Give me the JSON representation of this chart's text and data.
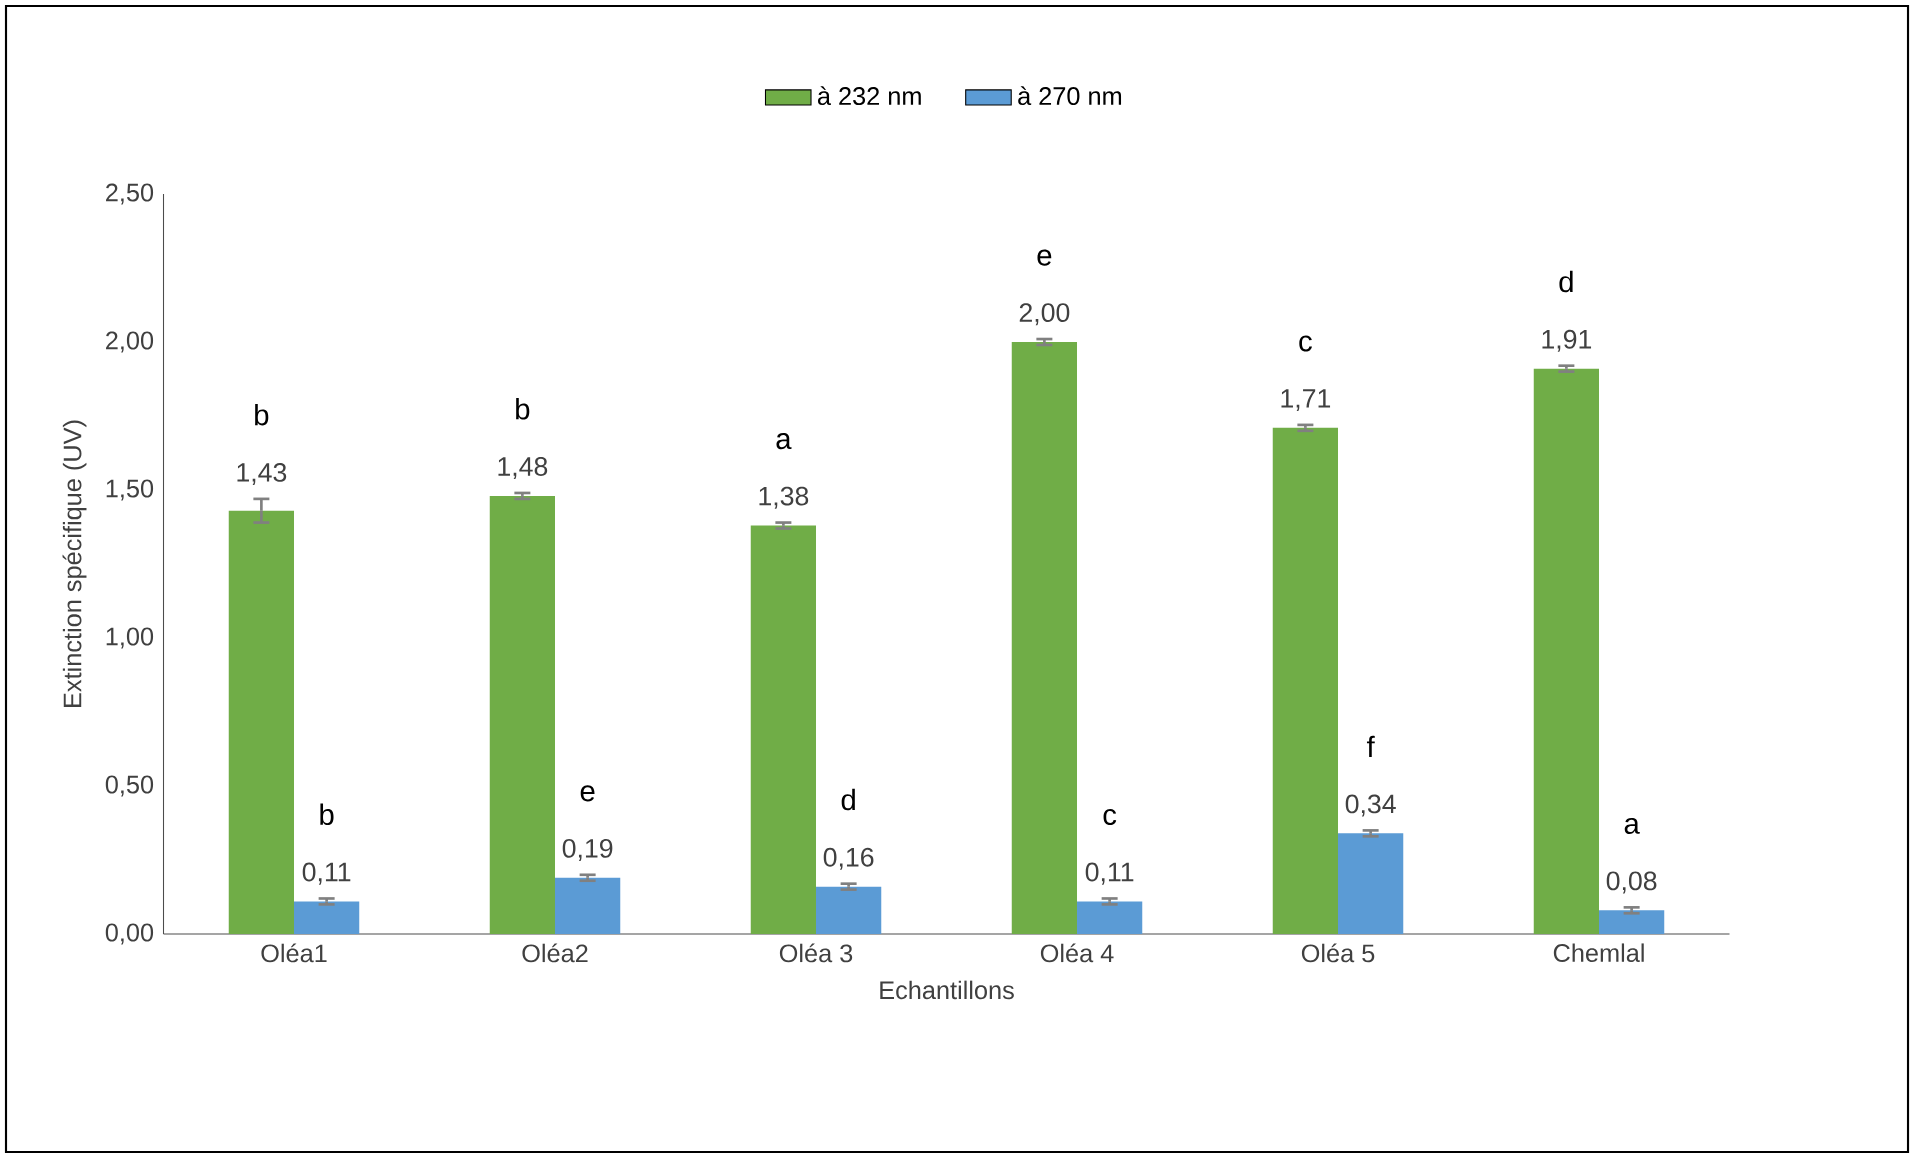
{
  "chart_data": {
    "type": "bar",
    "xlabel": "Echantillons",
    "ylabel": "Extinction spécifique (UV)",
    "categories": [
      "Oléa1",
      "Oléa2",
      "Oléa 3",
      "Oléa 4",
      "Oléa 5",
      "Chemlal"
    ],
    "series": [
      {
        "name": "à 232 nm",
        "color": "#70ad47",
        "values": [
          1.43,
          1.48,
          1.38,
          2.0,
          1.71,
          1.91
        ],
        "errors": [
          0.04,
          0.01,
          0.01,
          0.01,
          0.01,
          0.01
        ],
        "value_labels": [
          "1,43",
          "1,48",
          "1,38",
          "2,00",
          "1,71",
          "1,91"
        ]
      },
      {
        "name": "à 270 nm",
        "color": "#5b9bd5",
        "values": [
          0.11,
          0.19,
          0.16,
          0.11,
          0.34,
          0.08
        ],
        "errors": [
          0.01,
          0.01,
          0.01,
          0.01,
          0.01,
          0.01
        ],
        "value_labels": [
          "0,11",
          "0,19",
          "0,16",
          "0,11",
          "0,34",
          "0,08"
        ]
      }
    ],
    "ylim": [
      0,
      2.5
    ],
    "yticks": [
      {
        "value": 0,
        "label": "0,00"
      },
      {
        "value": 0.5,
        "label": "0,50"
      },
      {
        "value": 1,
        "label": "1,00"
      },
      {
        "value": 1.5,
        "label": "1,50"
      },
      {
        "value": 2,
        "label": "2,00"
      },
      {
        "value": 2.5,
        "label": "2,50"
      }
    ],
    "legend": "top",
    "annotations": [
      "b",
      "b",
      "b",
      "e",
      "a",
      "d",
      "e",
      "c",
      "c",
      "f",
      "d",
      "a"
    ]
  }
}
